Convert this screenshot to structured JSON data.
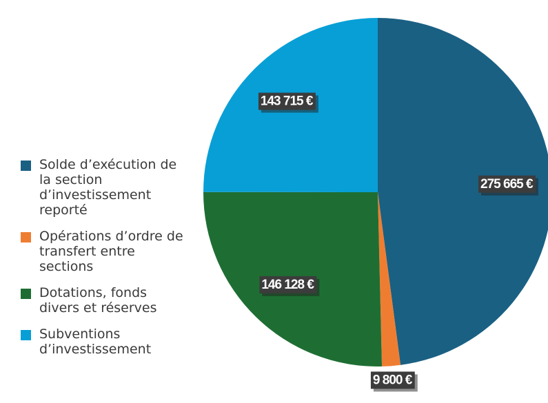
{
  "chart_data": {
    "type": "pie",
    "categories": [
      "Solde d’exécution de la section d’investissement reporté",
      "Opérations d’ordre de transfert entre sections",
      "Dotations, fonds divers et réserves",
      "Subventions d’investissement"
    ],
    "values": [
      275665,
      9800,
      146128,
      143715
    ],
    "value_labels": [
      "275 665 €",
      "9 800 €",
      "146 128 €",
      "143 715 €"
    ],
    "colors": [
      "#1a6083",
      "#ef7d31",
      "#1e6e33",
      "#089fd6"
    ],
    "legend": "left"
  }
}
